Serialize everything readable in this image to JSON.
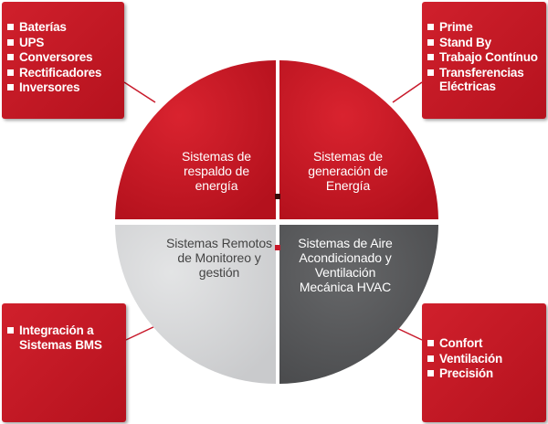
{
  "colors": {
    "accent_red": "#c8192a",
    "dark_red": "#b5121e",
    "light_gray": "#d7d8da",
    "dark_gray": "#58595b",
    "white": "#ffffff"
  },
  "boxes": {
    "top_left": {
      "items": [
        "Baterías",
        "UPS",
        "Conversores",
        "Rectificadores",
        "Inversores"
      ]
    },
    "top_right": {
      "items": [
        "Prime",
        "Stand By",
        "Trabajo Contínuo",
        "Transferencias Eléctricas"
      ]
    },
    "bottom_left": {
      "items": [
        "Integración a Sistemas BMS"
      ]
    },
    "bottom_right": {
      "items": [
        "Confort",
        "Ventilación",
        "Precisión"
      ]
    }
  },
  "quadrants": {
    "top_left": "Sistemas de respaldo de energía",
    "top_right": "Sistemas de generación de Energía",
    "bottom_left": "Sistemas Remotos de Monitoreo y gestión",
    "bottom_right": "Sistemas de Aire Acondicionado y Ventilación Mecánica HVAC"
  }
}
